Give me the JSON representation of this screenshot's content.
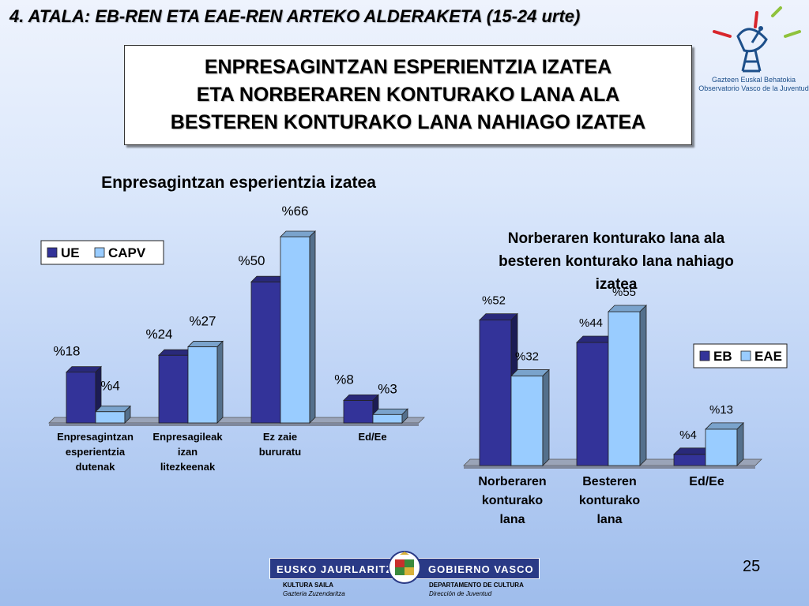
{
  "header": {
    "section_title": "4. ATALA: EB-REN ETA EAE-REN  ARTEKO ALDERAKETA (15-24 urte)"
  },
  "title_box": {
    "lines": [
      "ENPRESAGINTZAN ESPERIENTZIA IZATEA",
      "ETA NORBERAREN KONTURAKO LANA ALA",
      "BESTEREN KONTURAKO LANA NAHIAGO IZATEA"
    ]
  },
  "logo": {
    "line1": "Gazteen Euskal Behatokia",
    "line2": "Observatorio Vasco de la Juventud"
  },
  "chart_data": [
    {
      "type": "bar",
      "title": "Enpresagintzan esperientzia izatea",
      "categories": [
        [
          "Enpresagintzan",
          "esperientzia",
          "dutenak"
        ],
        [
          "Enpresagileak",
          "izan",
          "litezkeenak"
        ],
        [
          "Ez zaie",
          "bururatu"
        ],
        [
          "Ed/Ee"
        ]
      ],
      "series": [
        {
          "name": "UE",
          "values": [
            18,
            24,
            50,
            8
          ],
          "labels": [
            "%18",
            "%24",
            "%50",
            "%8"
          ],
          "color": "#333399"
        },
        {
          "name": "CAPV",
          "values": [
            4,
            27,
            66,
            3
          ],
          "labels": [
            "%4",
            "%27",
            "%66",
            "%3"
          ],
          "color": "#99ccff"
        }
      ],
      "ylim": [
        0,
        66
      ],
      "legend": "left",
      "grid": false,
      "style": "3d"
    },
    {
      "type": "bar",
      "title": [
        "Norberaren konturako lana ala",
        "besteren konturako lana nahiago",
        "izatea"
      ],
      "categories": [
        [
          "Norberaren",
          "konturako",
          "lana"
        ],
        [
          "Besteren",
          "konturako",
          "lana"
        ],
        [
          "Ed/Ee"
        ]
      ],
      "series": [
        {
          "name": "EB",
          "values": [
            52,
            44,
            4
          ],
          "labels": [
            "%52",
            "%44",
            "%4"
          ],
          "color": "#333399"
        },
        {
          "name": "EAE",
          "values": [
            32,
            55,
            13
          ],
          "labels": [
            "%32",
            "%55",
            "%13"
          ],
          "color": "#99ccff"
        }
      ],
      "ylim": [
        0,
        55
      ],
      "legend": "right",
      "grid": false,
      "style": "3d"
    }
  ],
  "footer": {
    "left_label": "EUSKO JAURLARITZA",
    "right_label": "GOBIERNO VASCO",
    "left_dept": "KULTURA SAILA",
    "left_sub": "Gazteria Zuzendaritza",
    "right_dept": "DEPARTAMENTO DE CULTURA",
    "right_sub": "Dirección de Juventud",
    "page_number": "25"
  }
}
